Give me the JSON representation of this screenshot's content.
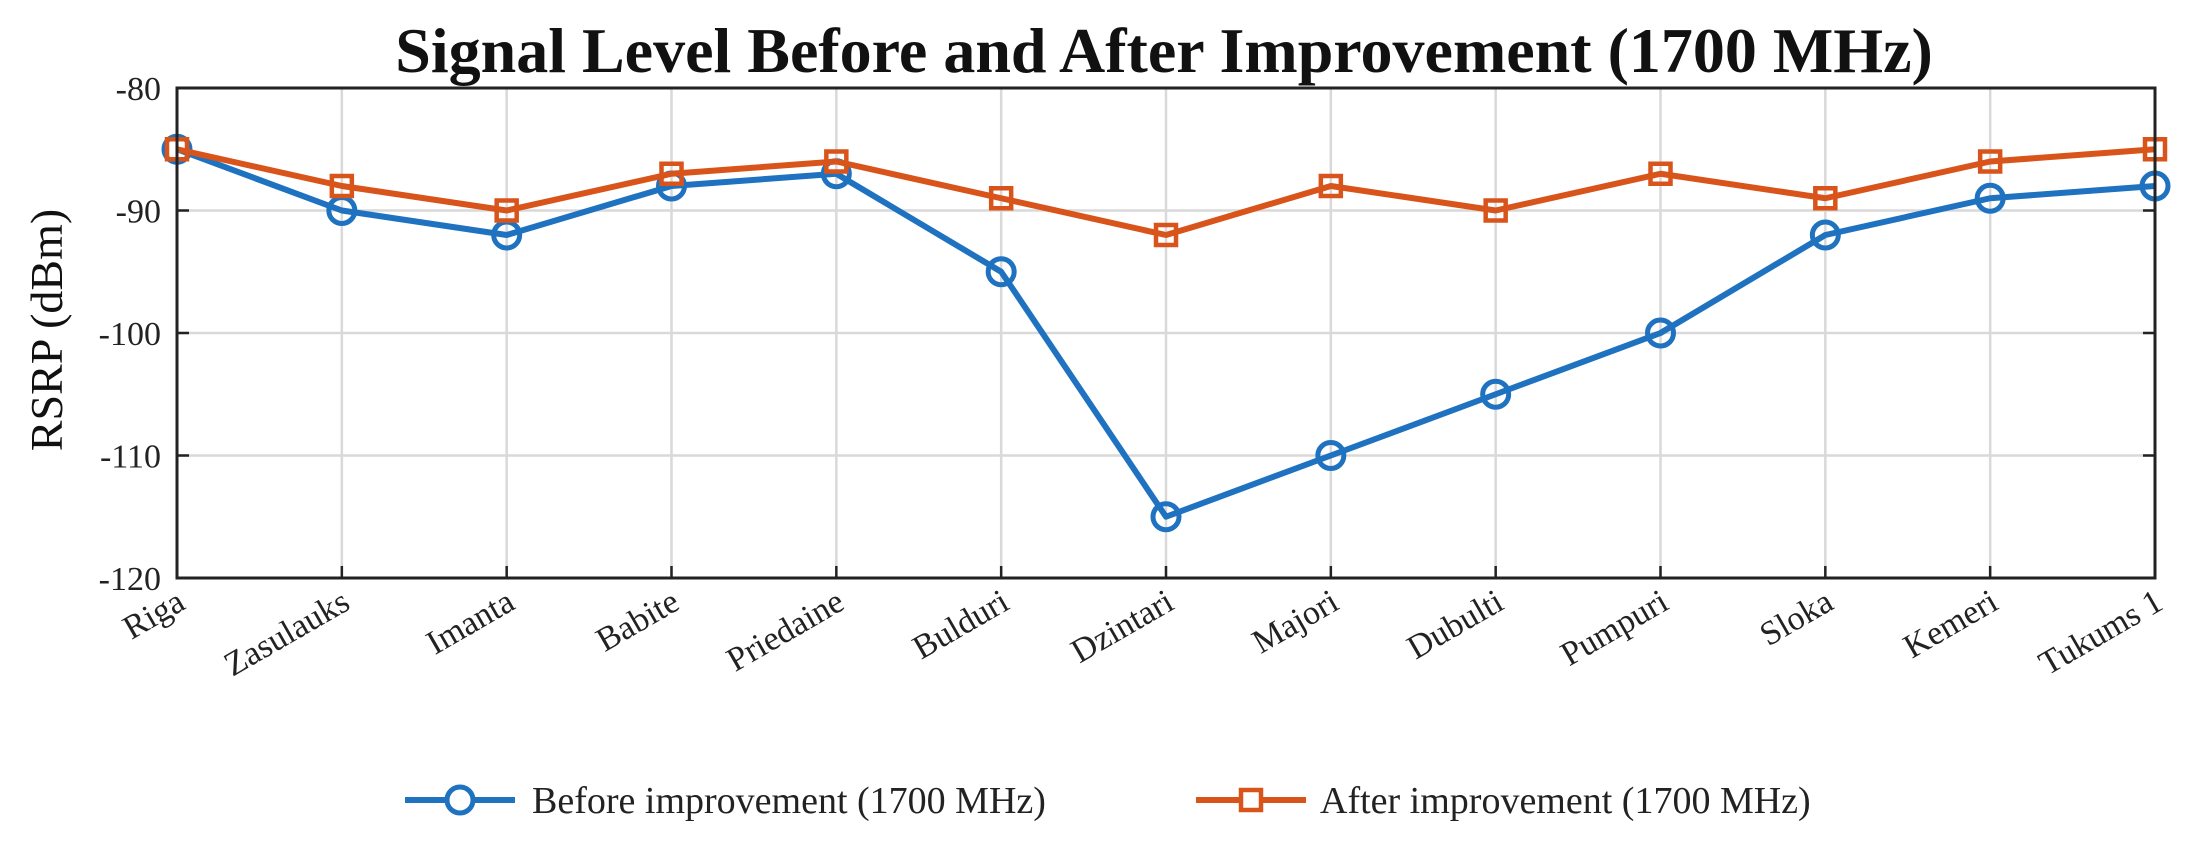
{
  "chart_data": {
    "type": "line",
    "title": "Signal Level Before and After Improvement (1700 MHz)",
    "xlabel": "",
    "ylabel": "RSRP (dBm)",
    "ylim": [
      -120,
      -80
    ],
    "yticks": [
      -80,
      -90,
      -100,
      -110,
      -120
    ],
    "grid": true,
    "legend_position": "bottom",
    "categories": [
      "Riga",
      "Zasulauks",
      "Imanta",
      "Babite",
      "Priedaine",
      "Bulduri",
      "Dzintari",
      "Majori",
      "Dubulti",
      "Pumpuri",
      "Sloka",
      "Kemeri",
      "Tukums 1"
    ],
    "series": [
      {
        "name": "Before improvement (1700 MHz)",
        "color": "#1f72c0",
        "marker": "circle",
        "values": [
          -85,
          -90,
          -92,
          -88,
          -87,
          -95,
          -115,
          -110,
          -105,
          -100,
          -92,
          -89,
          -88
        ]
      },
      {
        "name": "After improvement (1700 MHz)",
        "color": "#d9541a",
        "marker": "square",
        "values": [
          -85,
          -88,
          -90,
          -87,
          -86,
          -89,
          -92,
          -88,
          -90,
          -87,
          -89,
          -86,
          -85
        ]
      }
    ]
  }
}
